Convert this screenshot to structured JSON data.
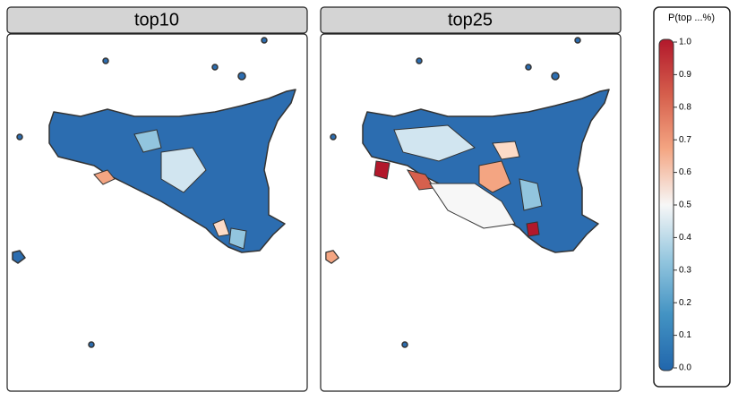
{
  "panels": [
    {
      "title": "top10"
    },
    {
      "title": "top25"
    }
  ],
  "legend": {
    "title": "P(top ...%)",
    "ticks": [
      {
        "value": 0,
        "label": "0.0"
      },
      0.1,
      0.2,
      0.3,
      0.4,
      0.5,
      0.6,
      0.7,
      0.8,
      0.9,
      {
        "value": 1,
        "label": "1.0"
      }
    ]
  }
}
